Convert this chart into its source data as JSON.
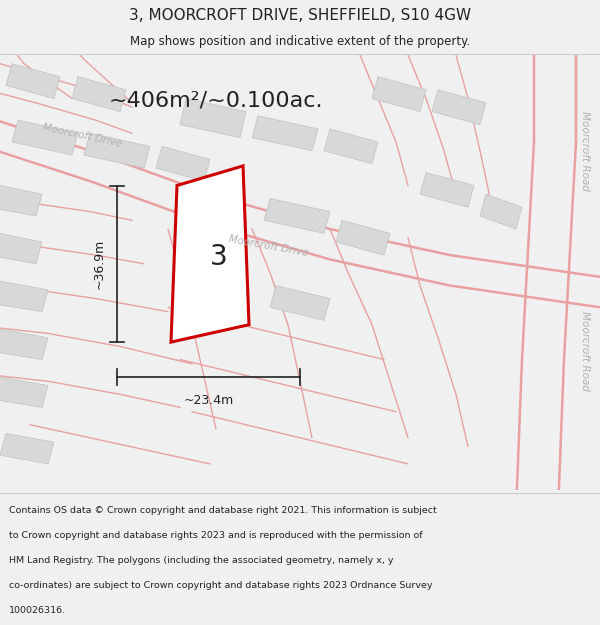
{
  "title": "3, MOORCROFT DRIVE, SHEFFIELD, S10 4GW",
  "subtitle": "Map shows position and indicative extent of the property.",
  "area_text": "~406m²/~0.100ac.",
  "dim_width": "~23.4m",
  "dim_height": "~36.9m",
  "plot_number": "3",
  "footer_lines": [
    "Contains OS data © Crown copyright and database right 2021. This information is subject",
    "to Crown copyright and database rights 2023 and is reproduced with the permission of",
    "HM Land Registry. The polygons (including the associated geometry, namely x, y",
    "co-ordinates) are subject to Crown copyright and database rights 2023 Ordnance Survey",
    "100026316."
  ],
  "bg_color": "#f0f0f0",
  "map_bg": "#ffffff",
  "road_line": "#e8a0a0",
  "building_fill": "#d8d8d8",
  "building_edge": "#c0c0c0",
  "plot_outline": "#cc0000",
  "plot_fill": "#ffffff",
  "dim_color": "#222222",
  "road_label_color": "#b0b0b0",
  "text_color": "#222222",
  "separator_color": "#cccccc"
}
